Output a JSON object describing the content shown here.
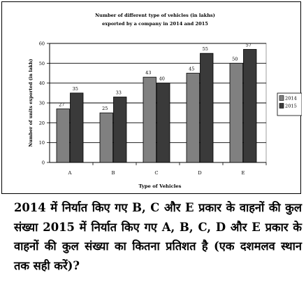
{
  "chart_data": {
    "type": "bar",
    "title_lines": [
      "Number of different type of vehicles (in lakhs)",
      "exported by a company in 2014 and 2015"
    ],
    "xlabel": "Type of Vehicles",
    "ylabel": "Number of units exported (in lakh)",
    "categories": [
      "A",
      "B",
      "C",
      "D",
      "E"
    ],
    "ylim": [
      0,
      60
    ],
    "yticks": [
      0,
      10,
      20,
      30,
      40,
      50,
      60
    ],
    "grid": true,
    "legend": "right",
    "series": [
      {
        "name": "2014",
        "values": [
          27,
          25,
          43,
          45,
          50
        ],
        "color": "#808080"
      },
      {
        "name": "2015",
        "values": [
          35,
          33,
          40,
          55,
          57
        ],
        "color": "#3a3a3a"
      }
    ]
  },
  "question": "2014 में निर्यात किए गए B, C और E प्रकार के वाहनों की कुल संख्या 2015 में निर्यात किए गए A, B, C, D और E प्रकार के वाहनों की कुल संख्या का कितना प्रतिशत है (एक दशमलव स्थान तक सही करें)?"
}
